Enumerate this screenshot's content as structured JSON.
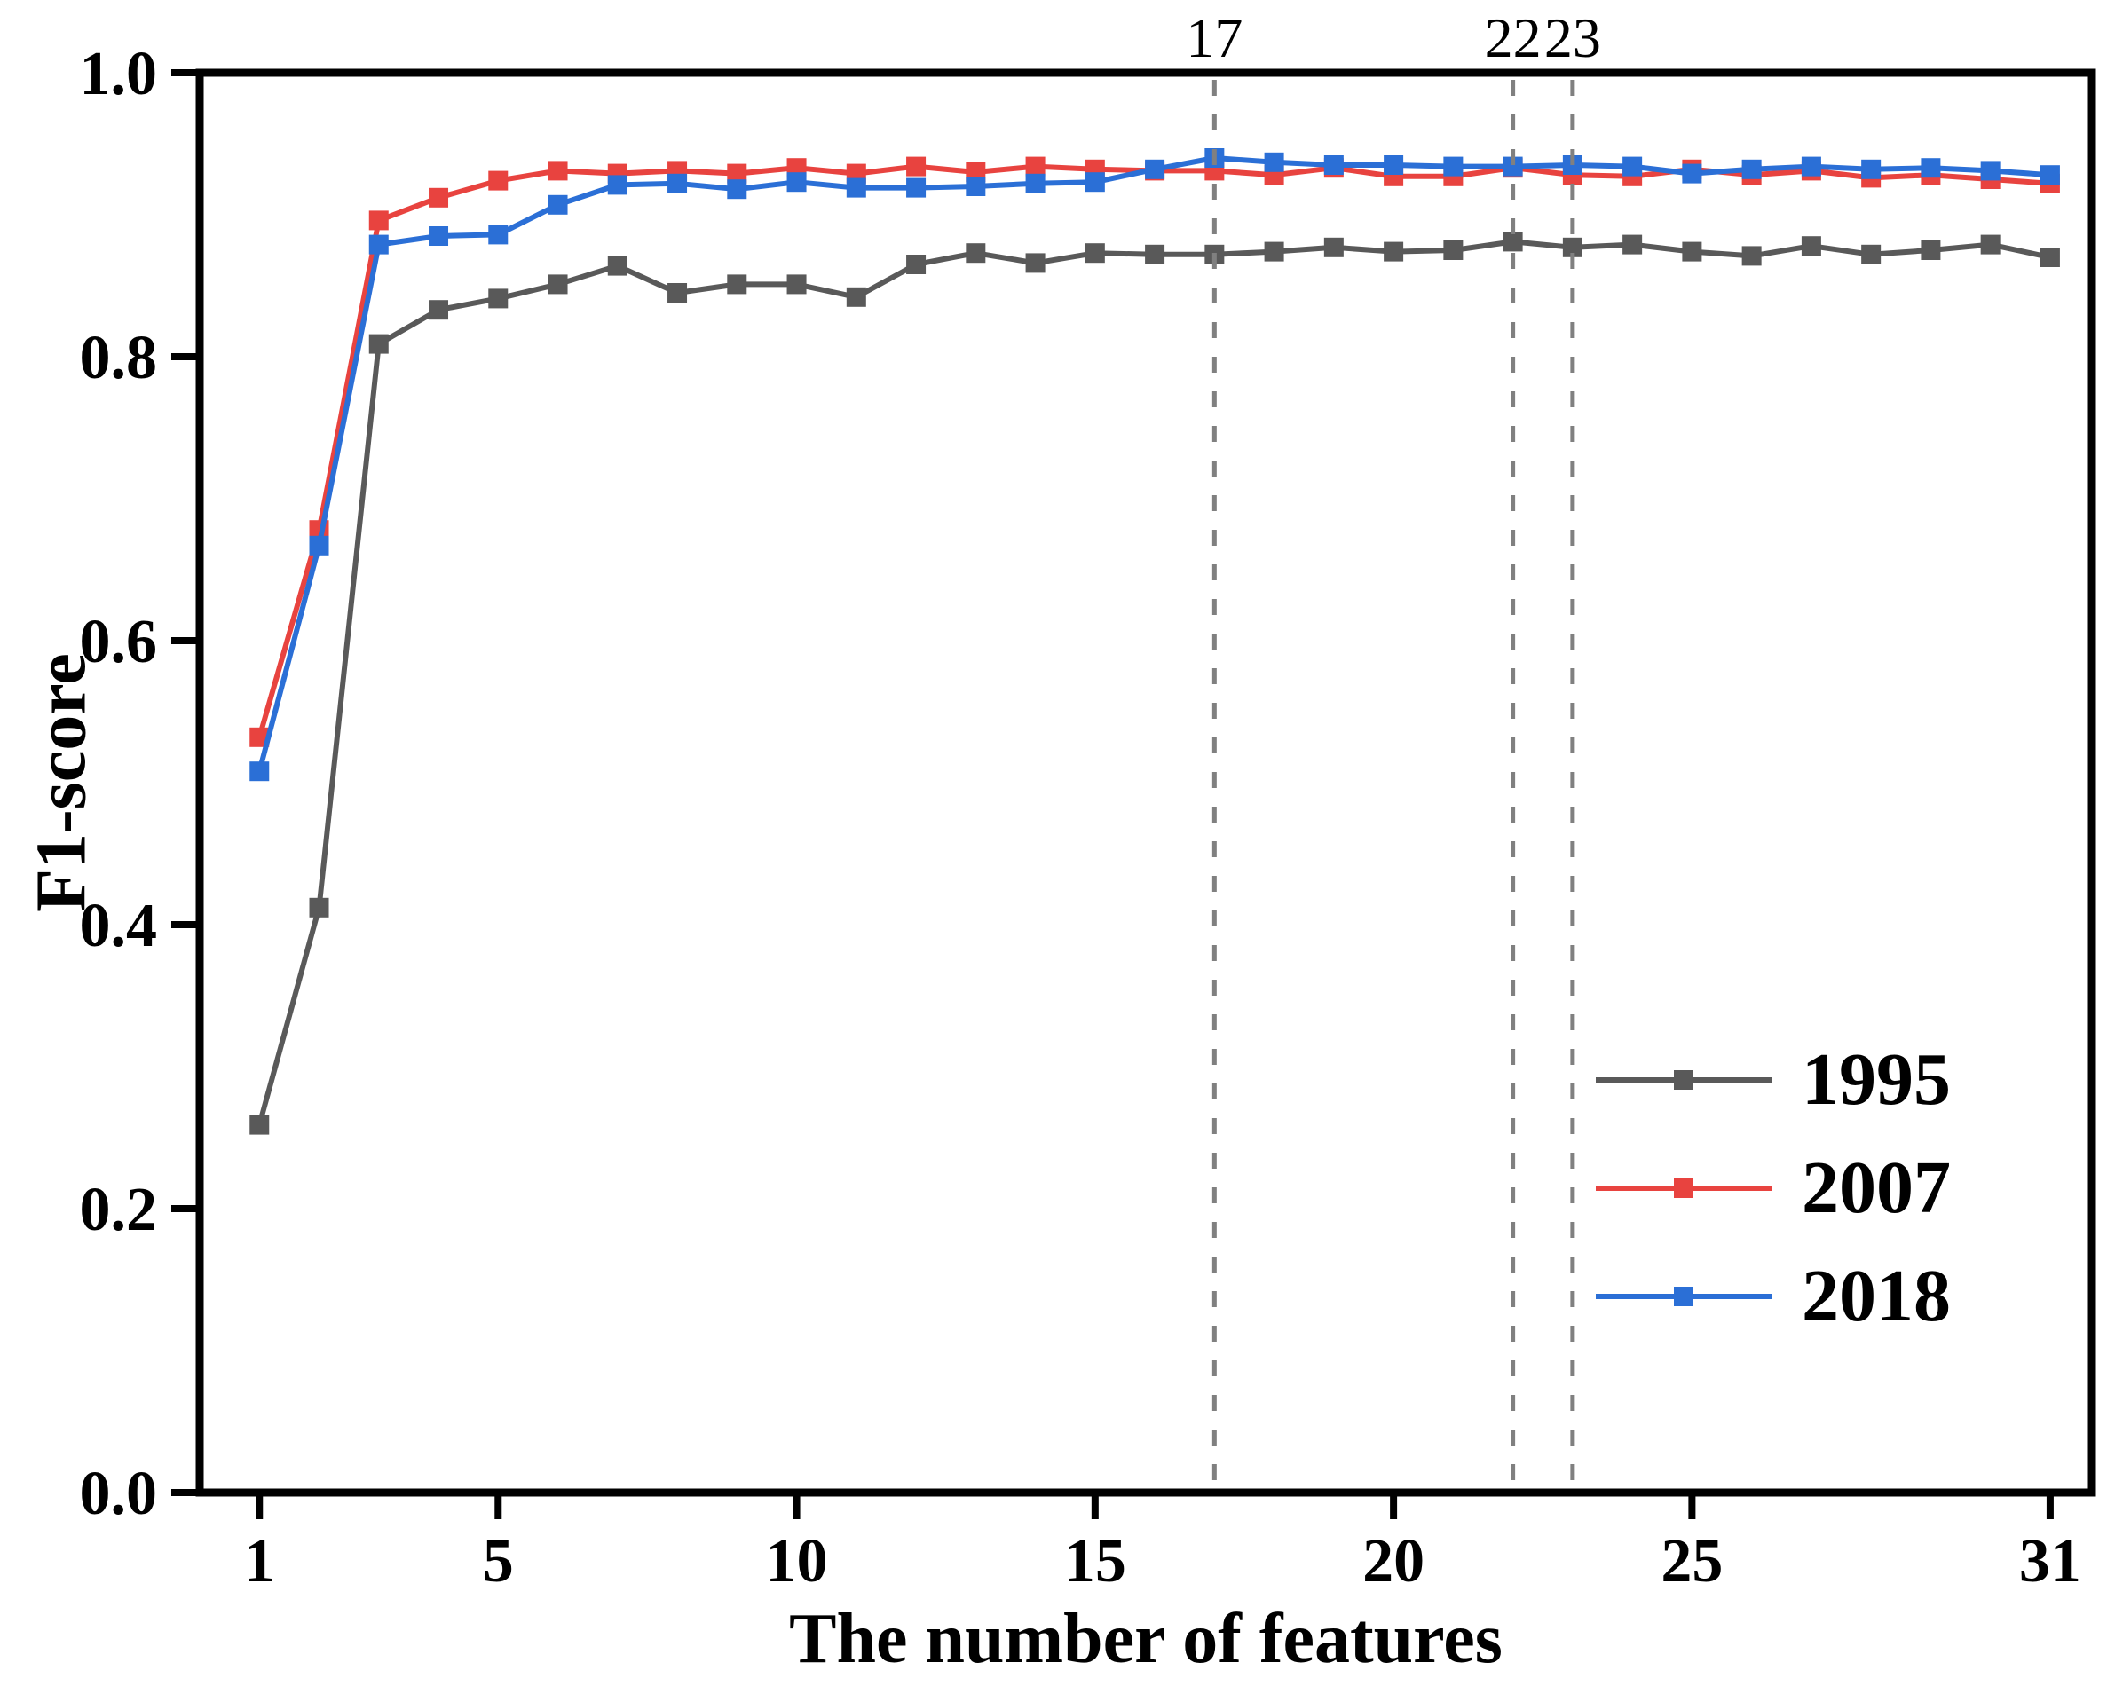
{
  "chart_data": {
    "type": "line",
    "title": "",
    "xlabel": "The number of features",
    "ylabel": "F1-score",
    "xlim": [
      0,
      31.7
    ],
    "ylim": [
      0.0,
      1.0
    ],
    "grid": false,
    "legend_position": "lower right",
    "x": [
      1,
      2,
      3,
      4,
      5,
      6,
      7,
      8,
      9,
      10,
      11,
      12,
      13,
      14,
      15,
      16,
      17,
      18,
      19,
      20,
      21,
      22,
      23,
      24,
      25,
      26,
      27,
      28,
      29,
      30,
      31
    ],
    "series": [
      {
        "name": "1995",
        "color": "#595959",
        "values": [
          0.259,
          0.412,
          0.809,
          0.833,
          0.841,
          0.851,
          0.864,
          0.845,
          0.851,
          0.851,
          0.842,
          0.865,
          0.873,
          0.866,
          0.873,
          0.872,
          0.872,
          0.874,
          0.877,
          0.874,
          0.875,
          0.881,
          0.877,
          0.879,
          0.874,
          0.871,
          0.878,
          0.872,
          0.875,
          0.879,
          0.87
        ]
      },
      {
        "name": "2007",
        "color": "#e8433f",
        "values": [
          0.532,
          0.678,
          0.896,
          0.912,
          0.924,
          0.931,
          0.929,
          0.931,
          0.929,
          0.933,
          0.929,
          0.934,
          0.93,
          0.934,
          0.932,
          0.931,
          0.931,
          0.928,
          0.933,
          0.927,
          0.927,
          0.933,
          0.928,
          0.927,
          0.932,
          0.928,
          0.931,
          0.926,
          0.928,
          0.925,
          0.922
        ]
      },
      {
        "name": "2018",
        "color": "#2b6fd6",
        "values": [
          0.508,
          0.667,
          0.879,
          0.885,
          0.886,
          0.907,
          0.921,
          0.922,
          0.918,
          0.923,
          0.919,
          0.919,
          0.92,
          0.922,
          0.923,
          0.932,
          0.94,
          0.937,
          0.935,
          0.935,
          0.934,
          0.934,
          0.935,
          0.934,
          0.929,
          0.932,
          0.934,
          0.932,
          0.933,
          0.931,
          0.928
        ]
      }
    ],
    "xticks": {
      "values": [
        1,
        5,
        10,
        15,
        20,
        25,
        31
      ],
      "labels": [
        "1",
        "5",
        "10",
        "15",
        "20",
        "25",
        "31"
      ]
    },
    "yticks": {
      "values": [
        0.0,
        0.2,
        0.4,
        0.6,
        0.8,
        1.0
      ],
      "labels": [
        "0.0",
        "0.2",
        "0.4",
        "0.6",
        "0.8",
        "1.0"
      ]
    },
    "annotations": {
      "vline_color": "#808080",
      "vlines": [
        {
          "x": 17,
          "label": "17"
        },
        {
          "x": 22,
          "label": "22"
        },
        {
          "x": 23,
          "label": "23"
        }
      ]
    }
  }
}
